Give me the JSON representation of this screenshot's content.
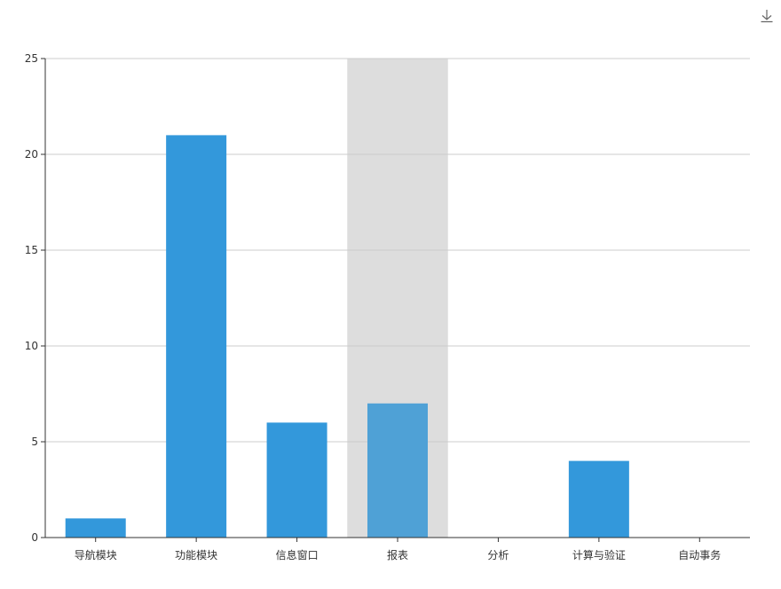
{
  "toolbar": {
    "download_icon": "download-icon"
  },
  "chart_data": {
    "type": "bar",
    "categories": [
      "导航模块",
      "功能模块",
      "信息窗口",
      "报表",
      "分析",
      "计算与验证",
      "自动事务"
    ],
    "values": [
      1,
      21,
      6,
      7,
      0,
      4,
      0
    ],
    "ylim": [
      0,
      25
    ],
    "yticks": [
      0,
      5,
      10,
      15,
      20,
      25
    ],
    "grid": true,
    "legend": "none",
    "highlighted_category": "报表",
    "colors": {
      "bar": "#3398DB",
      "bar_highlight": "#4fa1d6",
      "highlight_band": "#dddddd",
      "grid": "#cccccc",
      "axis": "#333333",
      "text": "#333333"
    }
  }
}
